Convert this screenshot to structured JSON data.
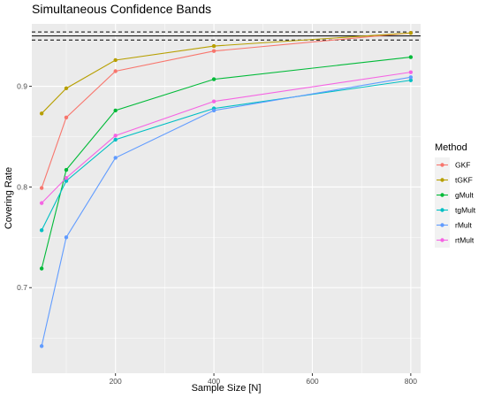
{
  "chart_data": {
    "type": "line",
    "title": "Simultaneous Confidence Bands",
    "xlabel": "Sample Size [N]",
    "ylabel": "Covering Rate",
    "x": [
      50,
      100,
      200,
      400,
      800
    ],
    "xlim": [
      30,
      820
    ],
    "ylim": [
      0.615,
      0.962
    ],
    "xticks": [
      200,
      400,
      600,
      800
    ],
    "yticks": [
      0.7,
      0.8,
      0.9
    ],
    "xtick_labels": [
      "200",
      "400",
      "600",
      "800"
    ],
    "ytick_labels": [
      "0.7",
      "0.8",
      "0.9"
    ],
    "reference_lines": {
      "solid": 0.95,
      "dashed": [
        0.946,
        0.954
      ]
    },
    "grid": true,
    "legend": {
      "title": "Method",
      "position": "right"
    },
    "series": [
      {
        "name": "GKF",
        "color": "#F8766D",
        "values": [
          0.799,
          0.869,
          0.915,
          0.935,
          0.953
        ]
      },
      {
        "name": "tGKF",
        "color": "#B79F00",
        "values": [
          0.873,
          0.898,
          0.926,
          0.94,
          0.953
        ]
      },
      {
        "name": "gMult",
        "color": "#00BA38",
        "values": [
          0.719,
          0.817,
          0.876,
          0.907,
          0.929
        ]
      },
      {
        "name": "tgMult",
        "color": "#00BFC4",
        "values": [
          0.757,
          0.806,
          0.847,
          0.878,
          0.906
        ]
      },
      {
        "name": "rMult",
        "color": "#619CFF",
        "values": [
          0.642,
          0.75,
          0.829,
          0.876,
          0.909
        ]
      },
      {
        "name": "rtMult",
        "color": "#F564E3",
        "values": [
          0.784,
          0.809,
          0.851,
          0.885,
          0.914
        ]
      }
    ]
  }
}
